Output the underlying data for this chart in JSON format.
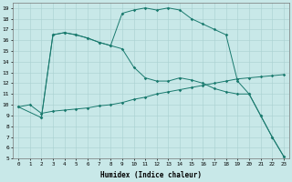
{
  "xlabel": "Humidex (Indice chaleur)",
  "bg_color": "#c8e8e8",
  "line_color": "#1a7a6e",
  "grid_color": "#a8d0d0",
  "xlim_min": -0.5,
  "xlim_max": 23.5,
  "ylim_min": 5,
  "ylim_max": 19.5,
  "xticks": [
    0,
    1,
    2,
    3,
    4,
    5,
    6,
    7,
    8,
    9,
    10,
    11,
    12,
    13,
    14,
    15,
    16,
    17,
    18,
    19,
    20,
    21,
    22,
    23
  ],
  "yticks": [
    5,
    6,
    7,
    8,
    9,
    10,
    11,
    12,
    13,
    14,
    15,
    16,
    17,
    18,
    19
  ],
  "lineA_x": [
    0,
    1,
    2,
    3,
    4,
    5,
    6,
    7,
    8,
    9,
    10,
    11,
    12,
    13,
    14,
    15,
    16,
    17,
    18,
    19,
    20,
    21,
    22,
    23
  ],
  "lineA_y": [
    9.8,
    10.0,
    9.2,
    9.4,
    9.5,
    9.6,
    9.7,
    9.9,
    10.0,
    10.2,
    10.5,
    10.7,
    11.0,
    11.2,
    11.4,
    11.6,
    11.8,
    12.0,
    12.2,
    12.4,
    12.5,
    12.6,
    12.7,
    12.8
  ],
  "lineB_x": [
    0,
    2,
    3,
    4,
    5,
    6,
    7,
    8,
    9,
    10,
    11,
    12,
    13,
    14,
    15,
    16,
    17,
    18,
    19,
    20,
    21,
    22,
    23
  ],
  "lineB_y": [
    9.8,
    8.8,
    16.5,
    16.7,
    16.5,
    16.2,
    15.8,
    15.5,
    15.2,
    13.5,
    12.5,
    12.2,
    12.2,
    12.5,
    12.3,
    12.0,
    11.5,
    11.2,
    11.0,
    11.0,
    9.0,
    7.0,
    5.2
  ],
  "lineC_x": [
    2,
    3,
    4,
    5,
    6,
    7,
    8,
    9,
    10,
    11,
    12,
    13,
    14,
    15,
    16,
    17,
    18,
    19,
    20,
    21,
    22,
    23
  ],
  "lineC_y": [
    8.8,
    16.5,
    16.7,
    16.5,
    16.2,
    15.8,
    15.5,
    18.5,
    18.8,
    19.0,
    18.8,
    19.0,
    18.8,
    18.0,
    17.5,
    17.0,
    16.5,
    12.2,
    11.0,
    9.0,
    7.0,
    5.2
  ]
}
